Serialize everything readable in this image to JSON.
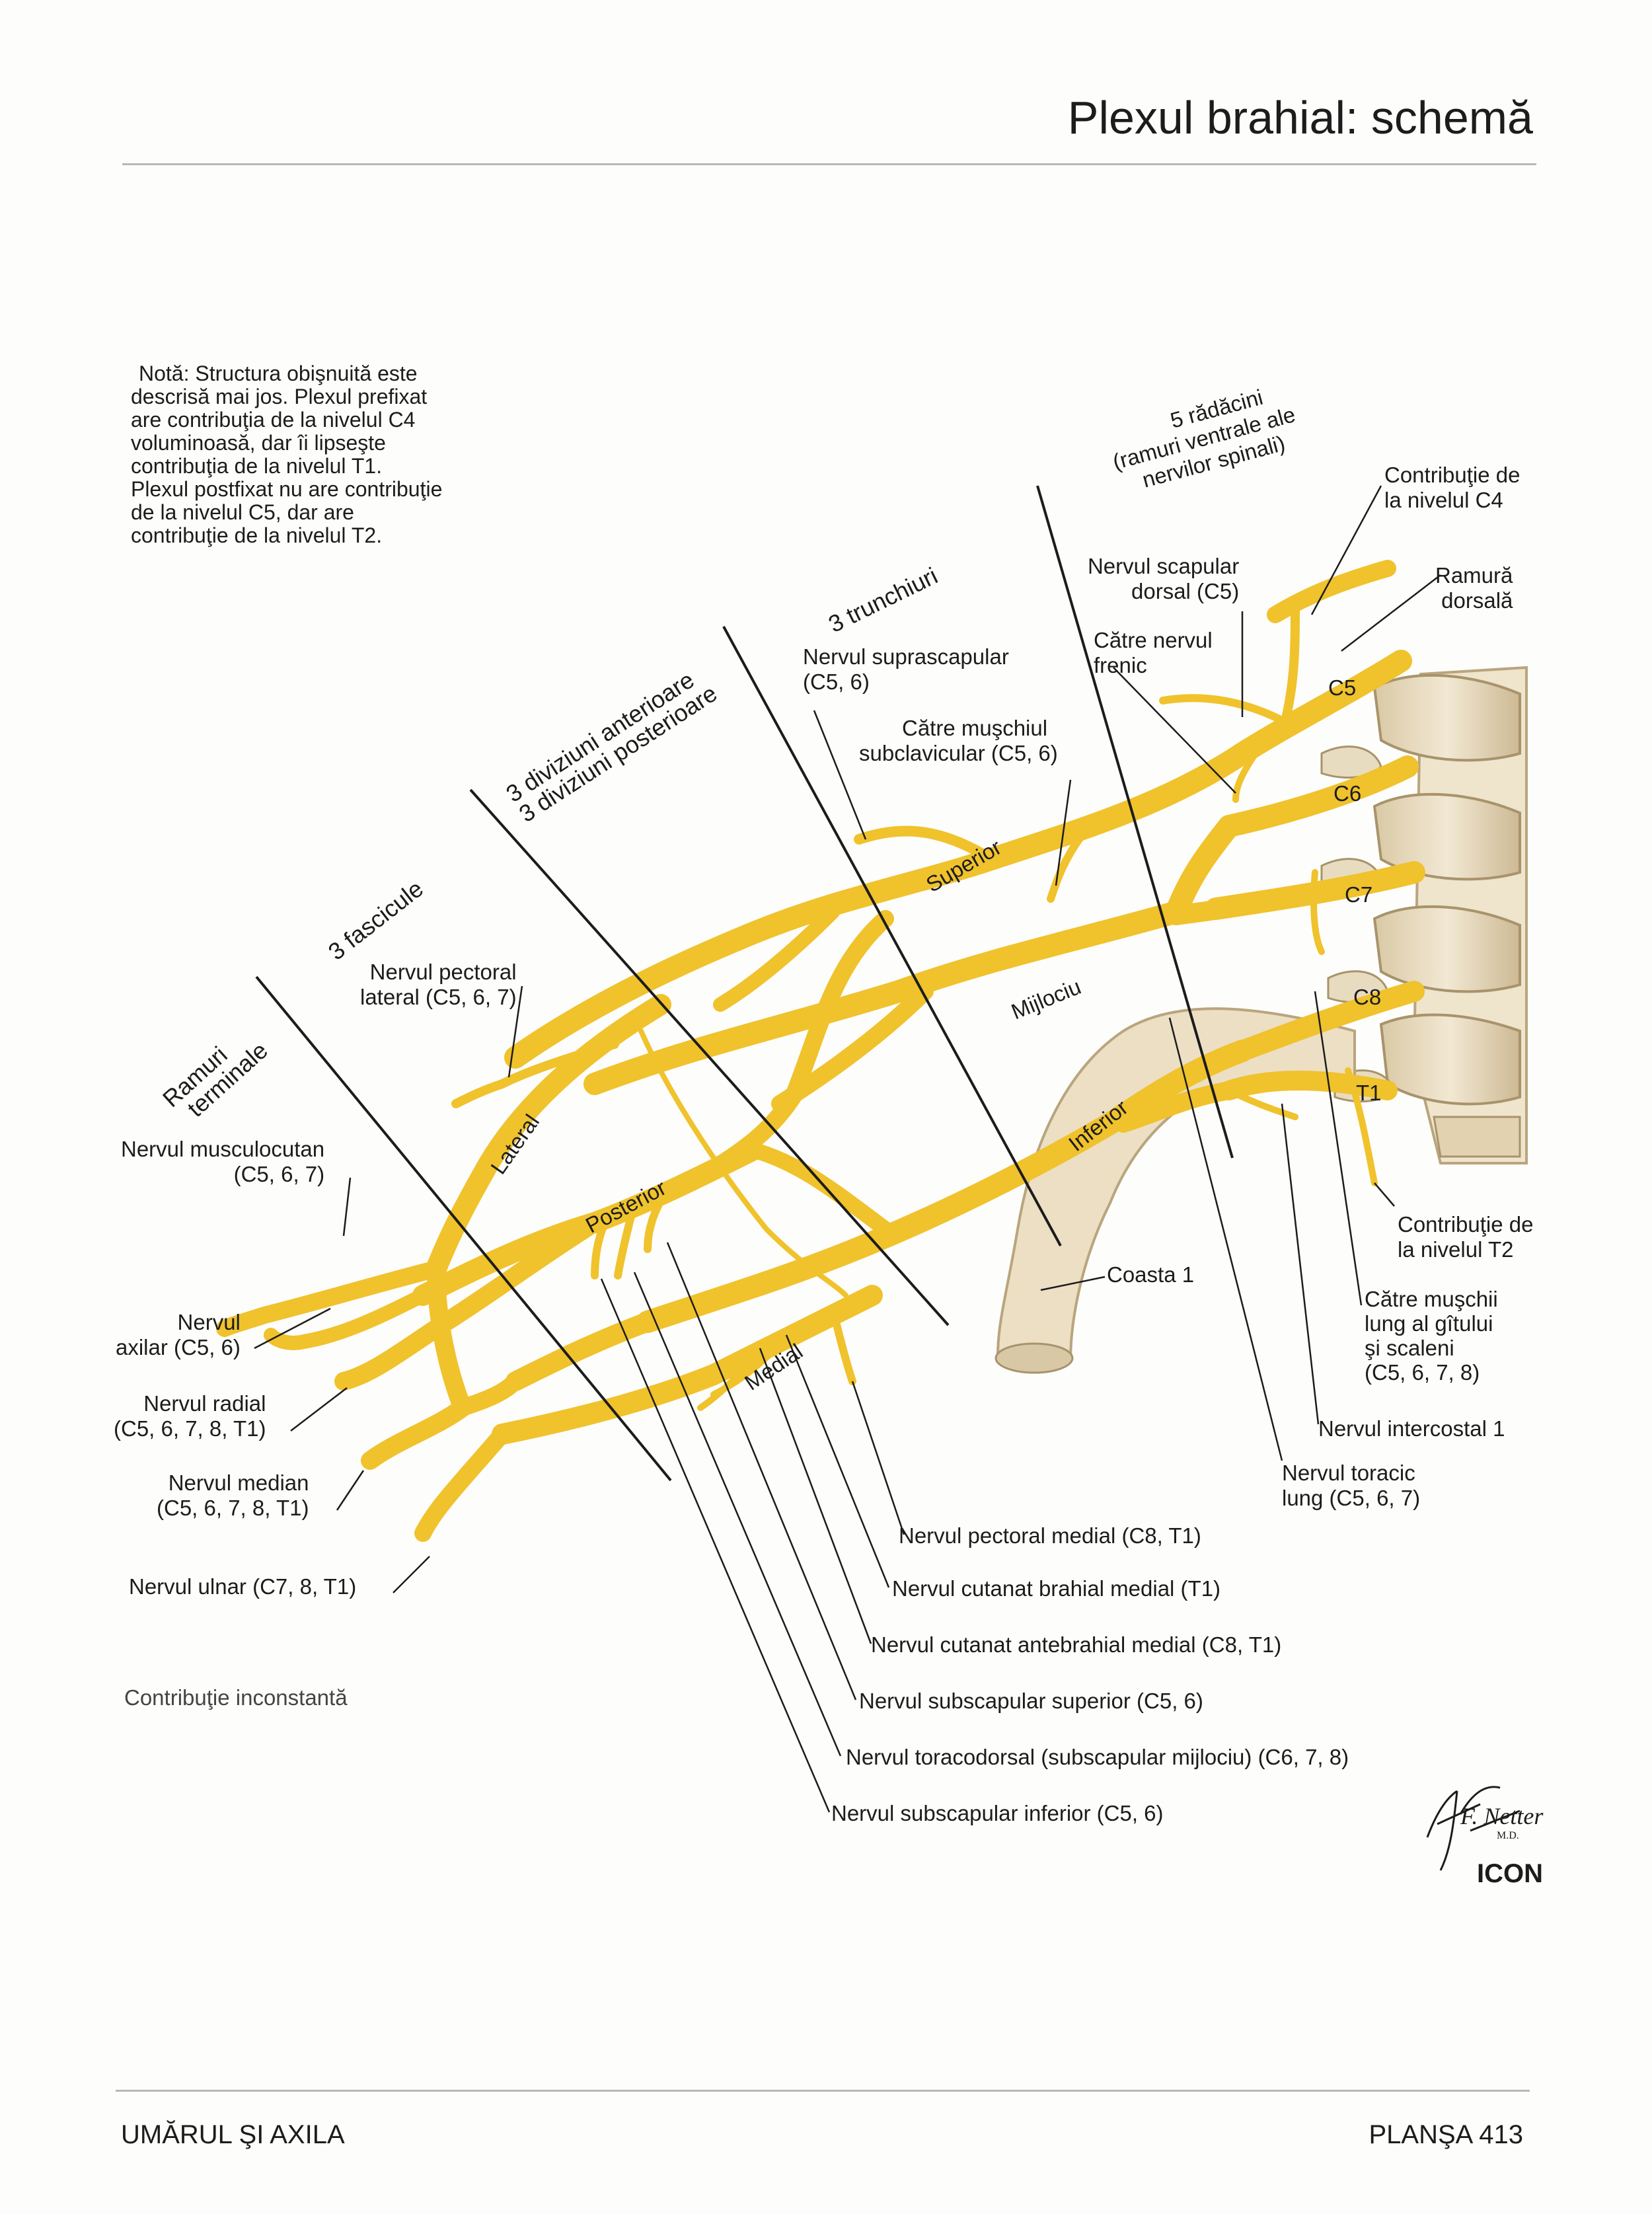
{
  "header": {
    "title": "Plexul brahial: schemă"
  },
  "note": {
    "lines": [
      "Notă: Structura obişnuită este",
      "descrisă mai jos. Plexul prefixat",
      "are contribuţia de la nivelul C4",
      "voluminoasă, dar îi lipseşte",
      "contribuţia de la nivelul  T1.",
      "Plexul postfixat nu are contribuţie",
      "de la nivelul C5, dar are",
      "contribuţie de la nivelul T2."
    ]
  },
  "zones": {
    "roots": [
      "5 rădăcini",
      "(ramuri ventrale ale",
      "nervilor spinali)"
    ],
    "trunks": "3 trunchiuri",
    "divisions": [
      "3 diviziuni anterioare",
      "3 diviziuni posterioare"
    ],
    "cords": "3 fascicule",
    "terminal": [
      "Ramuri",
      "terminale"
    ]
  },
  "levels": [
    "C5",
    "C6",
    "C7",
    "C8",
    "T1"
  ],
  "trunk_names": [
    "Superior",
    "Mijlociu",
    "Inferior"
  ],
  "cord_names": [
    "Lateral",
    "Posterior",
    "Medial"
  ],
  "labels": {
    "contrib_c4": [
      "Contribuţie de",
      "la nivelul C4"
    ],
    "ramura_dorsala": [
      "Ramură",
      "dorsală"
    ],
    "dorsal_scapular": [
      "Nervul scapular",
      "dorsal (C5)"
    ],
    "frenic": [
      "Către nervul",
      "frenic"
    ],
    "suprascapular": [
      "Nervul suprascapular",
      "(C5, 6)"
    ],
    "subclavicular": [
      "Către muşchiul",
      "subclavicular (C5, 6)"
    ],
    "pectoral_lateral": [
      "Nervul pectoral",
      "lateral (C5, 6, 7)"
    ],
    "musculocutan": [
      "Nervul musculocutan",
      "(C5, 6, 7)"
    ],
    "axilar": [
      "Nervul",
      "axilar (C5, 6)"
    ],
    "radial": [
      "Nervul radial",
      "(C5, 6, 7, 8, T1)"
    ],
    "median": [
      "Nervul median",
      "(C5, 6, 7, 8, T1)"
    ],
    "ulnar": "Nervul ulnar (C7, 8, T1)",
    "coasta": "Coasta 1",
    "contrib_t2": [
      "Contribuţie de",
      "la nivelul T2"
    ],
    "scaleni": [
      "Către muşchii",
      "lung al gîtului",
      "şi scaleni",
      "(C5, 6, 7, 8)"
    ],
    "intercostal": "Nervul intercostal 1",
    "toracic_lung": [
      "Nervul toracic",
      "lung (C5, 6, 7)"
    ],
    "pectoral_medial": "Nervul pectoral medial (C8, T1)",
    "cutanat_brahial": "Nervul cutanat brahial medial (T1)",
    "cutanat_antebrahial": "Nervul cutanat antebrahial medial (C8, T1)",
    "subscapular_superior": "Nervul subscapular superior (C5, 6)",
    "toracodorsal": "Nervul toracodorsal (subscapular mijlociu) (C6, 7, 8)",
    "subscapular_inferior": "Nervul subscapular inferior (C5, 6)",
    "inconstant": "Contribuţie inconstantă"
  },
  "signature": [
    "F. Netter",
    "M.D."
  ],
  "logo": "ICON",
  "footer": {
    "left": "UMĂRUL ŞI AXILA",
    "right": "PLANŞA 413"
  },
  "colors": {
    "nerve": "#f0c22c",
    "nerve_dark": "#c9960f",
    "bone": "#ecdfc4",
    "bone_dark": "#b9a57e"
  }
}
